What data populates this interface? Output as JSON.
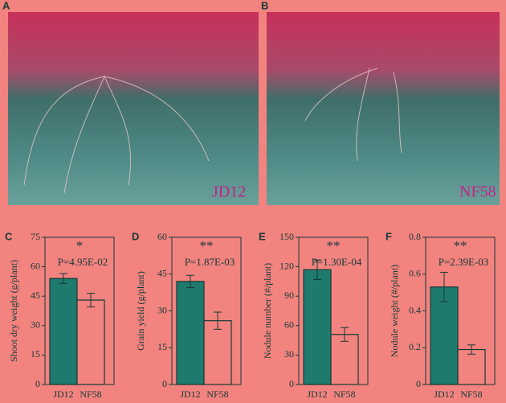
{
  "photos": [
    {
      "letter": "A",
      "label": "JD12"
    },
    {
      "letter": "B",
      "label": "NF58"
    }
  ],
  "chart_data": [
    {
      "type": "bar",
      "letter": "C",
      "ylabel": "Shoot dry weight (g/plant)",
      "categories": [
        "JD12",
        "NF58"
      ],
      "values": [
        54,
        43
      ],
      "errors": [
        2.5,
        3.5
      ],
      "colors": [
        "#1f7a6e",
        "none"
      ],
      "ylim": [
        0,
        75
      ],
      "yticks": [
        0,
        15,
        30,
        45,
        60,
        75
      ],
      "annotations": [
        "*",
        "P=4.95E-02"
      ]
    },
    {
      "type": "bar",
      "letter": "D",
      "ylabel": "Grain yield (g/plant)",
      "categories": [
        "JD12",
        "NF58"
      ],
      "values": [
        42,
        26
      ],
      "errors": [
        2.5,
        3.5
      ],
      "colors": [
        "#1f7a6e",
        "none"
      ],
      "ylim": [
        0,
        60
      ],
      "yticks": [
        0,
        15,
        30,
        45,
        60
      ],
      "annotations": [
        "**",
        "P=1.87E-03"
      ]
    },
    {
      "type": "bar",
      "letter": "E",
      "ylabel": "Nodule number (#/plant)",
      "categories": [
        "JD12",
        "NF58"
      ],
      "values": [
        117,
        51
      ],
      "errors": [
        10,
        7
      ],
      "colors": [
        "#1f7a6e",
        "none"
      ],
      "ylim": [
        0,
        150
      ],
      "yticks": [
        0,
        30,
        60,
        90,
        120,
        150
      ],
      "annotations": [
        "**",
        "P=1.30E-04"
      ]
    },
    {
      "type": "bar",
      "letter": "F",
      "ylabel": "Nodule weight (#/plant)",
      "categories": [
        "JD12",
        "NF58"
      ],
      "values": [
        0.53,
        0.19
      ],
      "errors": [
        0.08,
        0.025
      ],
      "colors": [
        "#1f7a6e",
        "none"
      ],
      "ylim": [
        0,
        0.8
      ],
      "yticks": [
        0,
        0.2,
        0.4,
        0.6,
        0.8
      ],
      "annotations": [
        "**",
        "P=2.39E-03"
      ]
    }
  ]
}
